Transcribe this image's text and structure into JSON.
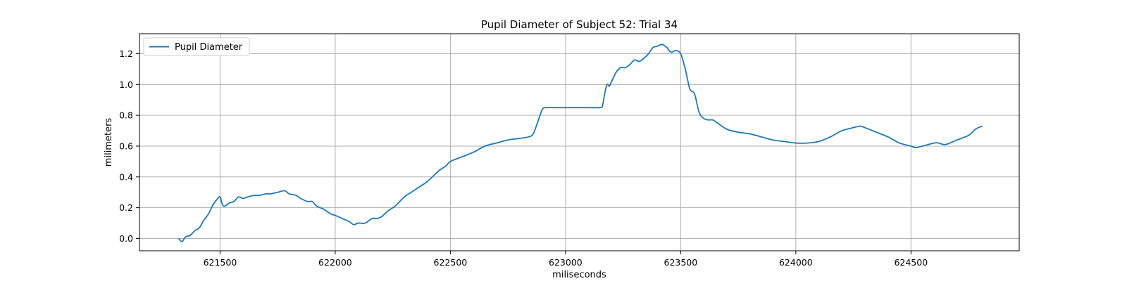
{
  "colors": {
    "series": "#1f77b4",
    "grid": "#b0b0b0",
    "frame": "#000000"
  },
  "chart_data": {
    "type": "line",
    "title": "Pupil Diameter of Subject 52: Trial 34",
    "xlabel": "miliseconds",
    "ylabel": "milimeters",
    "xlim": [
      621150,
      624970
    ],
    "ylim": [
      -0.08,
      1.33
    ],
    "xticks": [
      621500,
      622000,
      622500,
      623000,
      623500,
      624000,
      624500
    ],
    "yticks": [
      0.0,
      0.2,
      0.4,
      0.6,
      0.8,
      1.0,
      1.2
    ],
    "ytick_labels": [
      "0.0",
      "0.2",
      "0.4",
      "0.6",
      "0.8",
      "1.0",
      "1.2"
    ],
    "grid": true,
    "legend": {
      "position": "upper-left",
      "entries": [
        "Pupil Diameter"
      ]
    },
    "series": [
      {
        "name": "Pupil Diameter",
        "x": [
          621320,
          621335,
          621350,
          621370,
          621390,
          621410,
          621430,
          621450,
          621470,
          621490,
          621500,
          621510,
          621520,
          621540,
          621560,
          621580,
          621600,
          621620,
          621650,
          621670,
          621700,
          621720,
          621750,
          621780,
          621800,
          621830,
          621850,
          621880,
          621900,
          621920,
          621950,
          621980,
          622000,
          622030,
          622060,
          622080,
          622100,
          622130,
          622160,
          622180,
          622200,
          622230,
          622260,
          622300,
          622330,
          622360,
          622400,
          622450,
          622480,
          622500,
          622550,
          622600,
          622650,
          622700,
          622750,
          622800,
          622840,
          622860,
          622880,
          622900,
          622920,
          622950,
          623000,
          623100,
          623150,
          623160,
          623170,
          623180,
          623190,
          623200,
          623220,
          623240,
          623260,
          623280,
          623300,
          623320,
          623340,
          623360,
          623380,
          623400,
          623420,
          623440,
          623450,
          623460,
          623480,
          623500,
          623520,
          623540,
          623560,
          623580,
          623600,
          623620,
          623640,
          623660,
          623700,
          623750,
          623800,
          623850,
          623900,
          623950,
          624000,
          624050,
          624100,
          624150,
          624200,
          624250,
          624280,
          624300,
          624350,
          624400,
          624450,
          624500,
          624520,
          624550,
          624600,
          624620,
          624650,
          624700,
          624750,
          624780,
          624810
        ],
        "y": [
          0.0,
          -0.02,
          0.01,
          0.02,
          0.05,
          0.07,
          0.12,
          0.16,
          0.22,
          0.26,
          0.27,
          0.22,
          0.21,
          0.23,
          0.24,
          0.27,
          0.26,
          0.27,
          0.28,
          0.28,
          0.29,
          0.29,
          0.3,
          0.31,
          0.29,
          0.28,
          0.26,
          0.24,
          0.24,
          0.21,
          0.19,
          0.16,
          0.15,
          0.13,
          0.11,
          0.09,
          0.1,
          0.1,
          0.13,
          0.13,
          0.14,
          0.18,
          0.21,
          0.27,
          0.3,
          0.33,
          0.37,
          0.44,
          0.47,
          0.5,
          0.53,
          0.56,
          0.6,
          0.62,
          0.64,
          0.65,
          0.66,
          0.68,
          0.76,
          0.84,
          0.85,
          0.85,
          0.85,
          0.85,
          0.85,
          0.86,
          0.94,
          1.0,
          0.99,
          1.02,
          1.08,
          1.11,
          1.11,
          1.13,
          1.16,
          1.15,
          1.17,
          1.2,
          1.24,
          1.25,
          1.26,
          1.24,
          1.22,
          1.21,
          1.22,
          1.2,
          1.1,
          0.97,
          0.94,
          0.82,
          0.78,
          0.77,
          0.77,
          0.75,
          0.71,
          0.69,
          0.68,
          0.66,
          0.64,
          0.63,
          0.62,
          0.62,
          0.63,
          0.66,
          0.7,
          0.72,
          0.73,
          0.72,
          0.69,
          0.66,
          0.62,
          0.6,
          0.59,
          0.6,
          0.62,
          0.62,
          0.61,
          0.64,
          0.67,
          0.71,
          0.73
        ]
      }
    ]
  }
}
